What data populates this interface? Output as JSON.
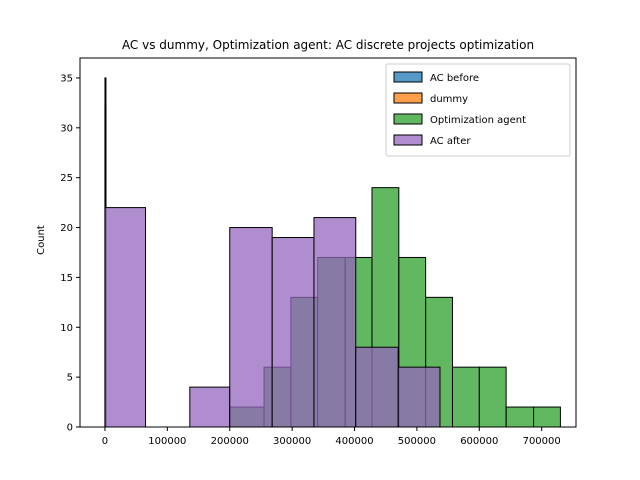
{
  "chart_data": {
    "type": "bar",
    "title": "AC vs dummy, Optimization agent: AC discrete projects optimization",
    "xlabel": "",
    "ylabel": "Count",
    "xlim": [
      -40000,
      755000
    ],
    "ylim": [
      0,
      37
    ],
    "x_ticks": [
      0,
      100000,
      200000,
      300000,
      400000,
      500000,
      600000,
      700000
    ],
    "x_tick_labels": [
      "0",
      "100000",
      "200000",
      "300000",
      "400000",
      "500000",
      "600000",
      "700000"
    ],
    "y_ticks": [
      0,
      5,
      10,
      15,
      20,
      25,
      30,
      35
    ],
    "y_tick_labels": [
      "0",
      "5",
      "10",
      "15",
      "20",
      "25",
      "30",
      "35"
    ],
    "grid": false,
    "legend_position": "top-right",
    "series": [
      {
        "name": "AC before",
        "color": "#1f77b4",
        "bins": [
          {
            "x0": 0,
            "x1": 600,
            "count": 35
          }
        ]
      },
      {
        "name": "dummy",
        "color": "#ff7f0e",
        "bins": [
          {
            "x0": 0,
            "x1": 600,
            "count": 32
          }
        ]
      },
      {
        "name": "Optimization agent",
        "color": "#2ca02c",
        "bins": [
          {
            "x0": 200000,
            "x1": 255000,
            "count": 2
          },
          {
            "x0": 255000,
            "x1": 298000,
            "count": 6
          },
          {
            "x0": 298000,
            "x1": 341000,
            "count": 13
          },
          {
            "x0": 341000,
            "x1": 385000,
            "count": 17
          },
          {
            "x0": 385000,
            "x1": 428000,
            "count": 17
          },
          {
            "x0": 428000,
            "x1": 471000,
            "count": 24
          },
          {
            "x0": 471000,
            "x1": 514000,
            "count": 17
          },
          {
            "x0": 514000,
            "x1": 557000,
            "count": 13
          },
          {
            "x0": 557000,
            "x1": 600000,
            "count": 6
          },
          {
            "x0": 600000,
            "x1": 643000,
            "count": 6
          },
          {
            "x0": 643000,
            "x1": 687000,
            "count": 2
          },
          {
            "x0": 687000,
            "x1": 730000,
            "count": 2
          }
        ]
      },
      {
        "name": "AC after",
        "color": "#9467bd",
        "bins": [
          {
            "x0": 0,
            "x1": 65000,
            "count": 22
          },
          {
            "x0": 65000,
            "x1": 136000,
            "count": 0
          },
          {
            "x0": 136000,
            "x1": 200000,
            "count": 4
          },
          {
            "x0": 200000,
            "x1": 268000,
            "count": 20
          },
          {
            "x0": 268000,
            "x1": 335000,
            "count": 19
          },
          {
            "x0": 335000,
            "x1": 402000,
            "count": 21
          },
          {
            "x0": 402000,
            "x1": 470000,
            "count": 8
          },
          {
            "x0": 470000,
            "x1": 537000,
            "count": 6
          }
        ]
      }
    ]
  }
}
